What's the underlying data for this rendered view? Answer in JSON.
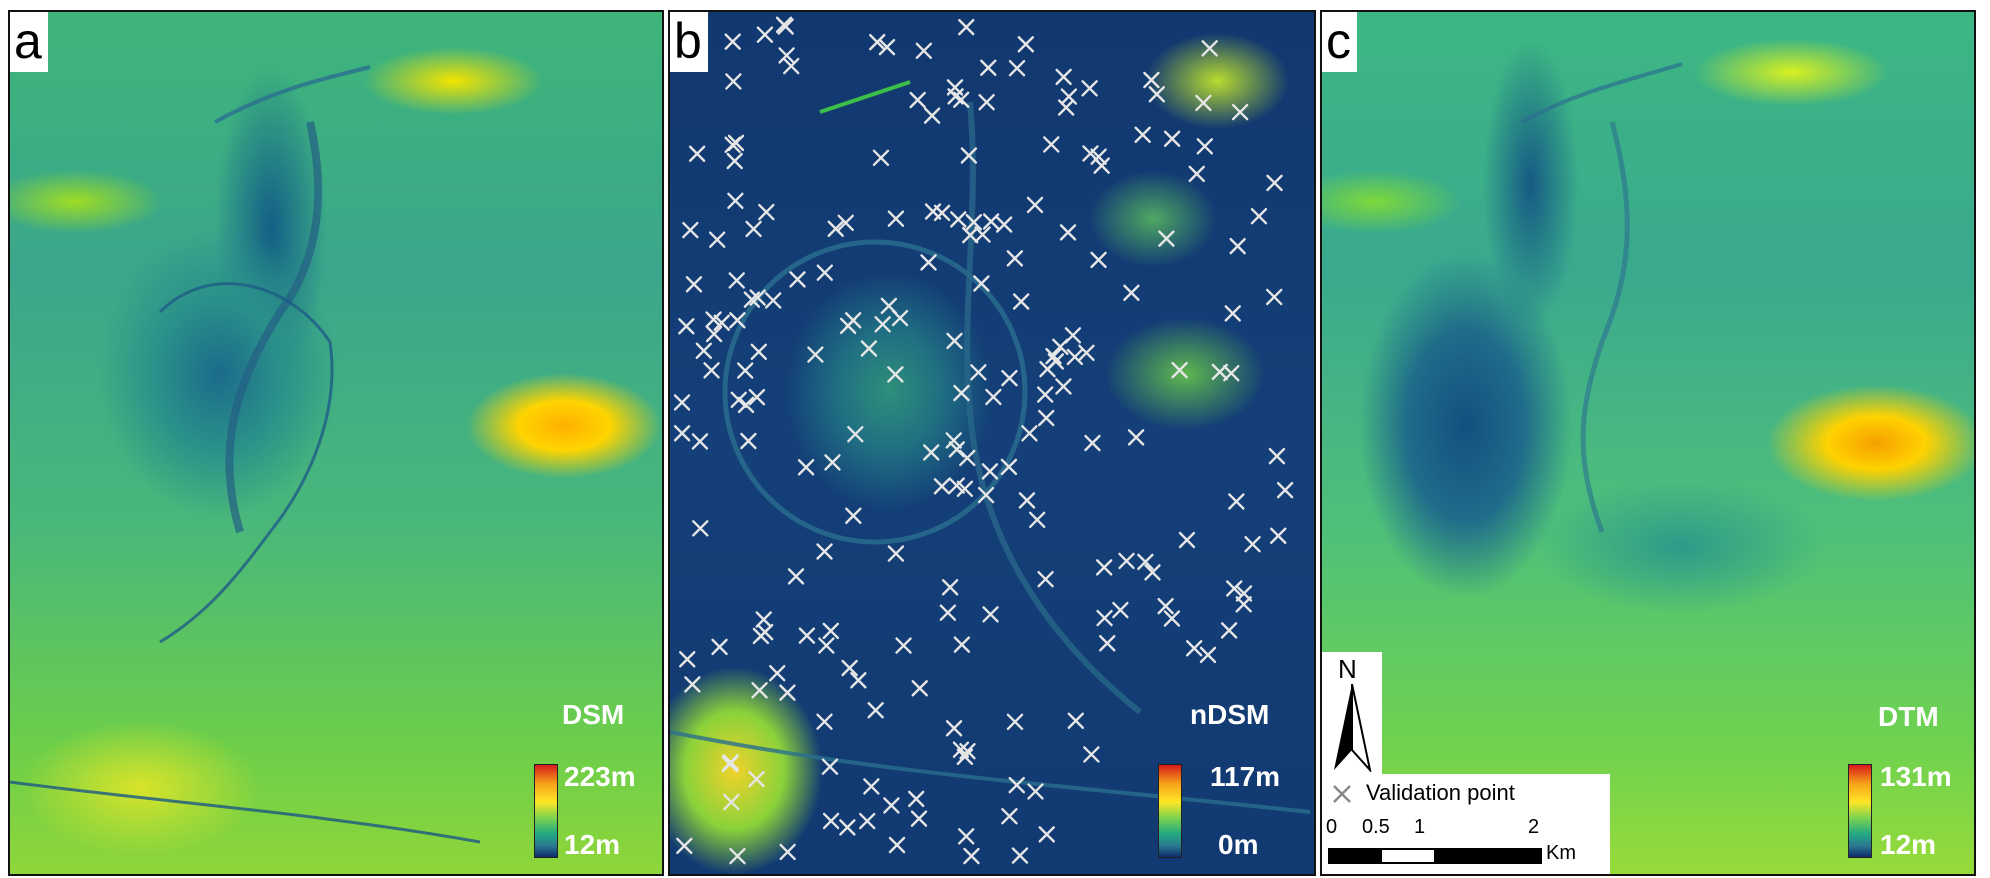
{
  "panels": [
    {
      "letter": "a",
      "legend": {
        "title": "DSM",
        "max": "223m",
        "min": "12m"
      }
    },
    {
      "letter": "b",
      "legend": {
        "title": "nDSM",
        "max": "117m",
        "min": "0m"
      }
    },
    {
      "letter": "c",
      "legend": {
        "title": "DTM",
        "max": "131m",
        "min": "12m"
      }
    }
  ],
  "north_arrow": {
    "label": "N"
  },
  "validation_legend": {
    "label": "Validation point"
  },
  "scale_bar": {
    "ticks": [
      "0",
      "0.5",
      "1",
      "2"
    ],
    "unit": "Km"
  },
  "colors": {
    "ramp": [
      "#d7191c",
      "#f7a11a",
      "#fde725",
      "#7ad151",
      "#22a884",
      "#2a788e",
      "#0d2a6b"
    ],
    "validation_marker": "#e6e6e6"
  },
  "icons": {
    "validation_marker": "x-cross-icon",
    "north": "north-arrow-icon"
  }
}
